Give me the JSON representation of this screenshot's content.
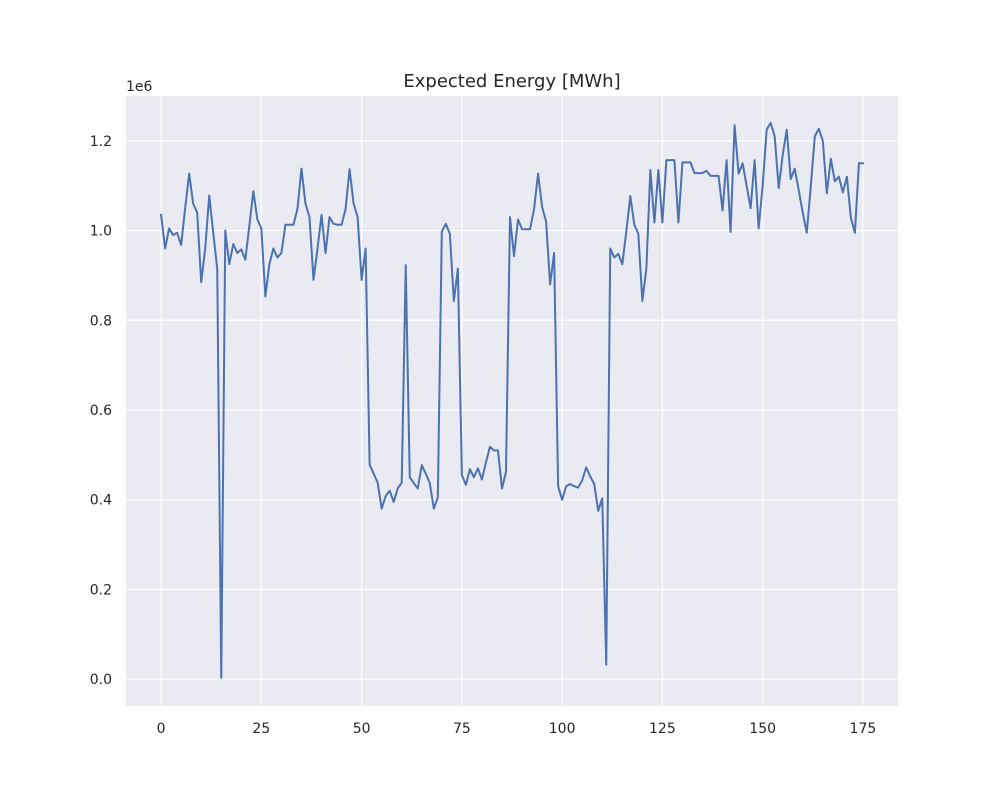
{
  "chart_data": {
    "type": "line",
    "title": "Expected Energy [MWh]",
    "xlabel": "",
    "ylabel": "",
    "y_offset_label": "1e6",
    "xlim": [
      -8.75,
      183.75
    ],
    "ylim": [
      -0.06,
      1.3
    ],
    "x_ticks": [
      0,
      25,
      50,
      75,
      100,
      125,
      150,
      175
    ],
    "x_tick_labels": [
      "0",
      "25",
      "50",
      "75",
      "100",
      "125",
      "150",
      "175"
    ],
    "y_ticks": [
      0.0,
      0.2,
      0.4,
      0.6,
      0.8,
      1.0,
      1.2
    ],
    "y_tick_labels": [
      "0.0",
      "0.2",
      "0.4",
      "0.6",
      "0.8",
      "1.0",
      "1.2"
    ],
    "grid": true,
    "legend": "none",
    "colors": {
      "plot_bg": "#eaeaf2",
      "grid": "#ffffff",
      "line": "#4c72b0",
      "figure_bg": "#ffffff"
    },
    "series": [
      {
        "x_start": 0,
        "x_step": 1,
        "values": [
          1.035,
          0.96,
          1.005,
          0.99,
          0.995,
          0.968,
          1.05,
          1.127,
          1.06,
          1.04,
          0.885,
          0.96,
          1.078,
          0.995,
          0.915,
          0.003,
          1.0,
          0.925,
          0.97,
          0.95,
          0.958,
          0.935,
          1.01,
          1.088,
          1.025,
          1.005,
          0.853,
          0.925,
          0.96,
          0.94,
          0.95,
          1.013,
          1.013,
          1.013,
          1.048,
          1.138,
          1.06,
          1.03,
          0.89,
          0.96,
          1.035,
          0.95,
          1.03,
          1.015,
          1.013,
          1.013,
          1.048,
          1.137,
          1.06,
          1.03,
          0.89,
          0.96,
          0.478,
          0.458,
          0.438,
          0.38,
          0.408,
          0.42,
          0.395,
          0.425,
          0.438,
          0.923,
          0.45,
          0.437,
          0.425,
          0.477,
          0.458,
          0.437,
          0.38,
          0.405,
          0.998,
          1.015,
          0.993,
          0.843,
          0.915,
          0.455,
          0.433,
          0.468,
          0.45,
          0.47,
          0.445,
          0.483,
          0.518,
          0.51,
          0.51,
          0.425,
          0.462,
          1.03,
          0.943,
          1.025,
          1.003,
          1.003,
          1.003,
          1.048,
          1.127,
          1.053,
          1.02,
          0.88,
          0.95,
          0.43,
          0.4,
          0.43,
          0.435,
          0.43,
          0.427,
          0.443,
          0.472,
          0.452,
          0.435,
          0.375,
          0.403,
          0.032,
          0.96,
          0.94,
          0.948,
          0.925,
          0.998,
          1.077,
          1.013,
          0.993,
          0.843,
          0.915,
          1.135,
          1.018,
          1.135,
          1.018,
          1.157,
          1.157,
          1.157,
          1.018,
          1.152,
          1.152,
          1.152,
          1.128,
          1.128,
          1.128,
          1.133,
          1.122,
          1.122,
          1.122,
          1.045,
          1.157,
          0.997,
          1.235,
          1.127,
          1.15,
          1.1,
          1.05,
          1.157,
          1.005,
          1.1,
          1.225,
          1.24,
          1.21,
          1.095,
          1.168,
          1.225,
          1.115,
          1.138,
          1.09,
          1.04,
          0.995,
          1.098,
          1.21,
          1.227,
          1.2,
          1.083,
          1.16,
          1.11,
          1.12,
          1.085,
          1.12,
          1.028,
          0.995,
          1.15,
          1.15
        ]
      }
    ]
  }
}
